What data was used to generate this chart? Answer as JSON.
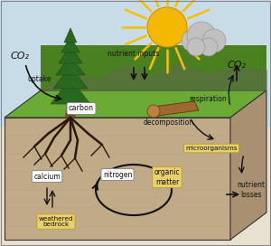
{
  "background_color": "#f5f0e8",
  "labels": {
    "CO2_left": "CO₂",
    "uptake": "uptake",
    "carbon": "carbon",
    "nutrient_inputs": "nutrient inputs",
    "CO2_right": "CO₂",
    "respiration": "respiration",
    "decomposition": "decomposition",
    "microorganisms": "microorganisms",
    "calcium": "calcium",
    "nitrogen": "nitrogen",
    "organic_matter": "organic\nmatter",
    "weathered_bedrock": "weathered\nbedrock",
    "nutrient_losses": "nutrient\nlosses"
  },
  "label_box_color": "#e8d070",
  "label_box_edge": "#c0a030",
  "white_box_color": "#ffffff",
  "white_box_edge": "#888888",
  "arrow_color": "#111111",
  "sun_color": "#f5b800",
  "text_color": "#111111"
}
